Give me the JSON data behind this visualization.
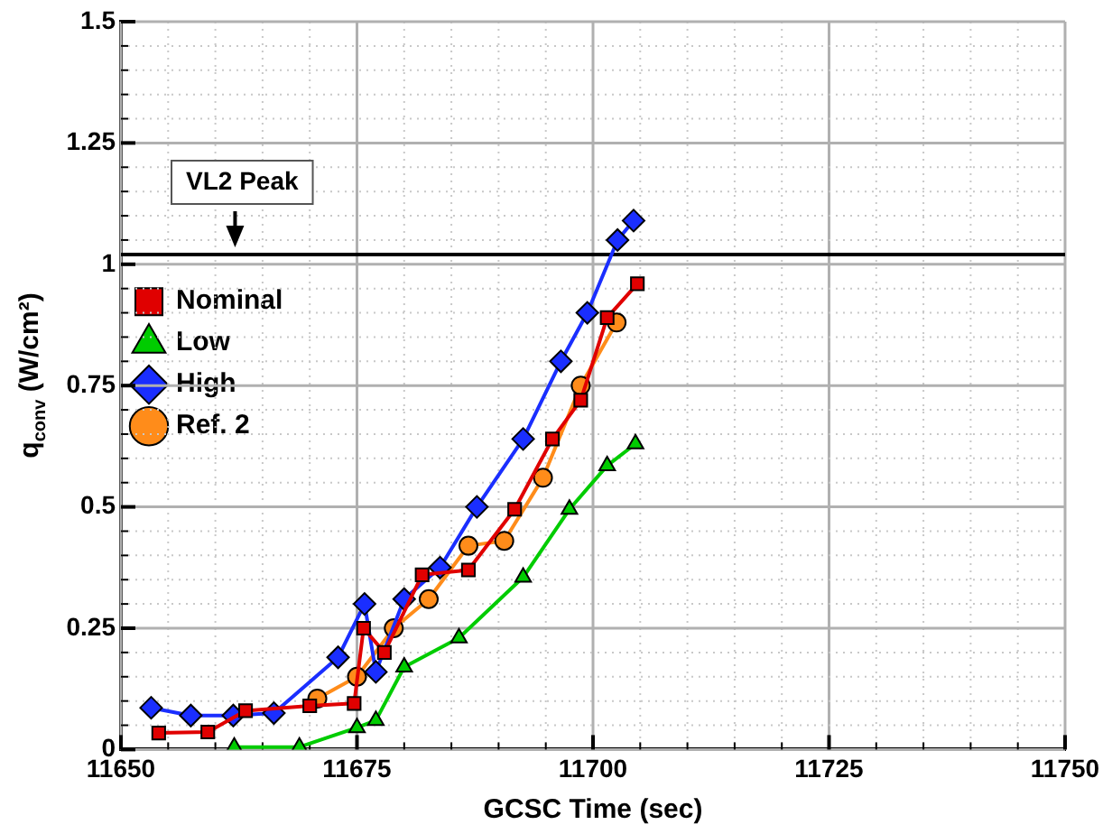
{
  "chart_data": {
    "type": "line",
    "xlabel": "GCSC Time (sec)",
    "ylabel": "q$_{conv}$ (W/cm²)",
    "xlim": [
      11650,
      11750
    ],
    "ylim": [
      0,
      1.5
    ],
    "xticks": [
      11650,
      {
        "value": 11655,
        "label": null
      },
      {
        "value": 11660,
        "label": null
      },
      {
        "value": 11665,
        "label": null
      },
      {
        "value": 11670,
        "label": null
      },
      11675,
      {
        "value": 11680,
        "label": null
      },
      {
        "value": 11685,
        "label": null
      },
      {
        "value": 11690,
        "label": null
      },
      {
        "value": 11695,
        "label": null
      },
      11700,
      {
        "value": 11705,
        "label": null
      },
      {
        "value": 11710,
        "label": null
      },
      {
        "value": 11715,
        "label": null
      },
      {
        "value": 11720,
        "label": null
      },
      11725,
      {
        "value": 11730,
        "label": null
      },
      {
        "value": 11735,
        "label": null
      },
      {
        "value": 11740,
        "label": null
      },
      {
        "value": 11745,
        "label": null
      },
      11750
    ],
    "yticks": [
      0,
      {
        "value": 0.05,
        "label": null
      },
      {
        "value": 0.1,
        "label": null
      },
      {
        "value": 0.15,
        "label": null
      },
      {
        "value": 0.2,
        "label": null
      },
      0.25,
      {
        "value": 0.3,
        "label": null
      },
      {
        "value": 0.35,
        "label": null
      },
      {
        "value": 0.4,
        "label": null
      },
      {
        "value": 0.45,
        "label": null
      },
      0.5,
      {
        "value": 0.55,
        "label": null
      },
      {
        "value": 0.6,
        "label": null
      },
      {
        "value": 0.65,
        "label": null
      },
      {
        "value": 0.7,
        "label": null
      },
      0.75,
      {
        "value": 0.8,
        "label": null
      },
      {
        "value": 0.85,
        "label": null
      },
      {
        "value": 0.9,
        "label": null
      },
      {
        "value": 0.95,
        "label": null
      },
      1,
      {
        "value": 1.05,
        "label": null
      },
      {
        "value": 1.1,
        "label": null
      },
      {
        "value": 1.15,
        "label": null
      },
      {
        "value": 1.2,
        "label": null
      },
      1.25,
      {
        "value": 1.3,
        "label": null
      },
      {
        "value": 1.35,
        "label": null
      },
      {
        "value": 1.4,
        "label": null
      },
      {
        "value": 1.45,
        "label": null
      },
      1.5
    ],
    "grid": true,
    "legend": "top",
    "line_style": "solid",
    "ref_lines": [
      {
        "axis": "y",
        "value": 1.02,
        "label": "VL2 Peak",
        "color": "#000000"
      }
    ],
    "series": [
      {
        "name": "Nominal",
        "color": "#e00000",
        "marker": "square",
        "x": [
          11654,
          11659.2,
          11663.2,
          11670,
          11674.7,
          11675.7,
          11677.9,
          11681.9,
          11686.8,
          11691.7,
          11695.7,
          11698.7,
          11701.5,
          11704.7
        ],
        "values": [
          0.034,
          0.036,
          0.08,
          0.09,
          0.095,
          0.25,
          0.2,
          0.36,
          0.37,
          0.495,
          0.64,
          0.72,
          0.89,
          0.96
        ]
      },
      {
        "name": "Low",
        "color": "#00cc00",
        "marker": "triangle",
        "x": [
          11662,
          11668.9,
          11675,
          11677,
          11680,
          11685.8,
          11692.6,
          11697.5,
          11701.5,
          11704.5
        ],
        "values": [
          0.005,
          0.005,
          0.045,
          0.06,
          0.17,
          0.23,
          0.355,
          0.495,
          0.585,
          0.63
        ]
      },
      {
        "name": "High",
        "color": "#1a2eff",
        "marker": "diamond",
        "x": [
          11653.2,
          11657.4,
          11661.9,
          11666.2,
          11673,
          11675.8,
          11677,
          11680,
          11683.8,
          11687.7,
          11692.6,
          11696.6,
          11699.4,
          11702.6,
          11704.3
        ],
        "values": [
          0.086,
          0.07,
          0.07,
          0.075,
          0.19,
          0.3,
          0.16,
          0.31,
          0.375,
          0.5,
          0.64,
          0.8,
          0.9,
          1.05,
          1.09
        ]
      },
      {
        "name": "Ref. 2",
        "color": "#ff8c1a",
        "marker": "circle",
        "x": [
          11670.8,
          11675,
          11678.9,
          11682.6,
          11686.8,
          11690.6,
          11694.7,
          11698.7,
          11702.5
        ],
        "values": [
          0.105,
          0.15,
          0.25,
          0.31,
          0.42,
          0.43,
          0.56,
          0.75,
          0.88
        ]
      }
    ]
  }
}
